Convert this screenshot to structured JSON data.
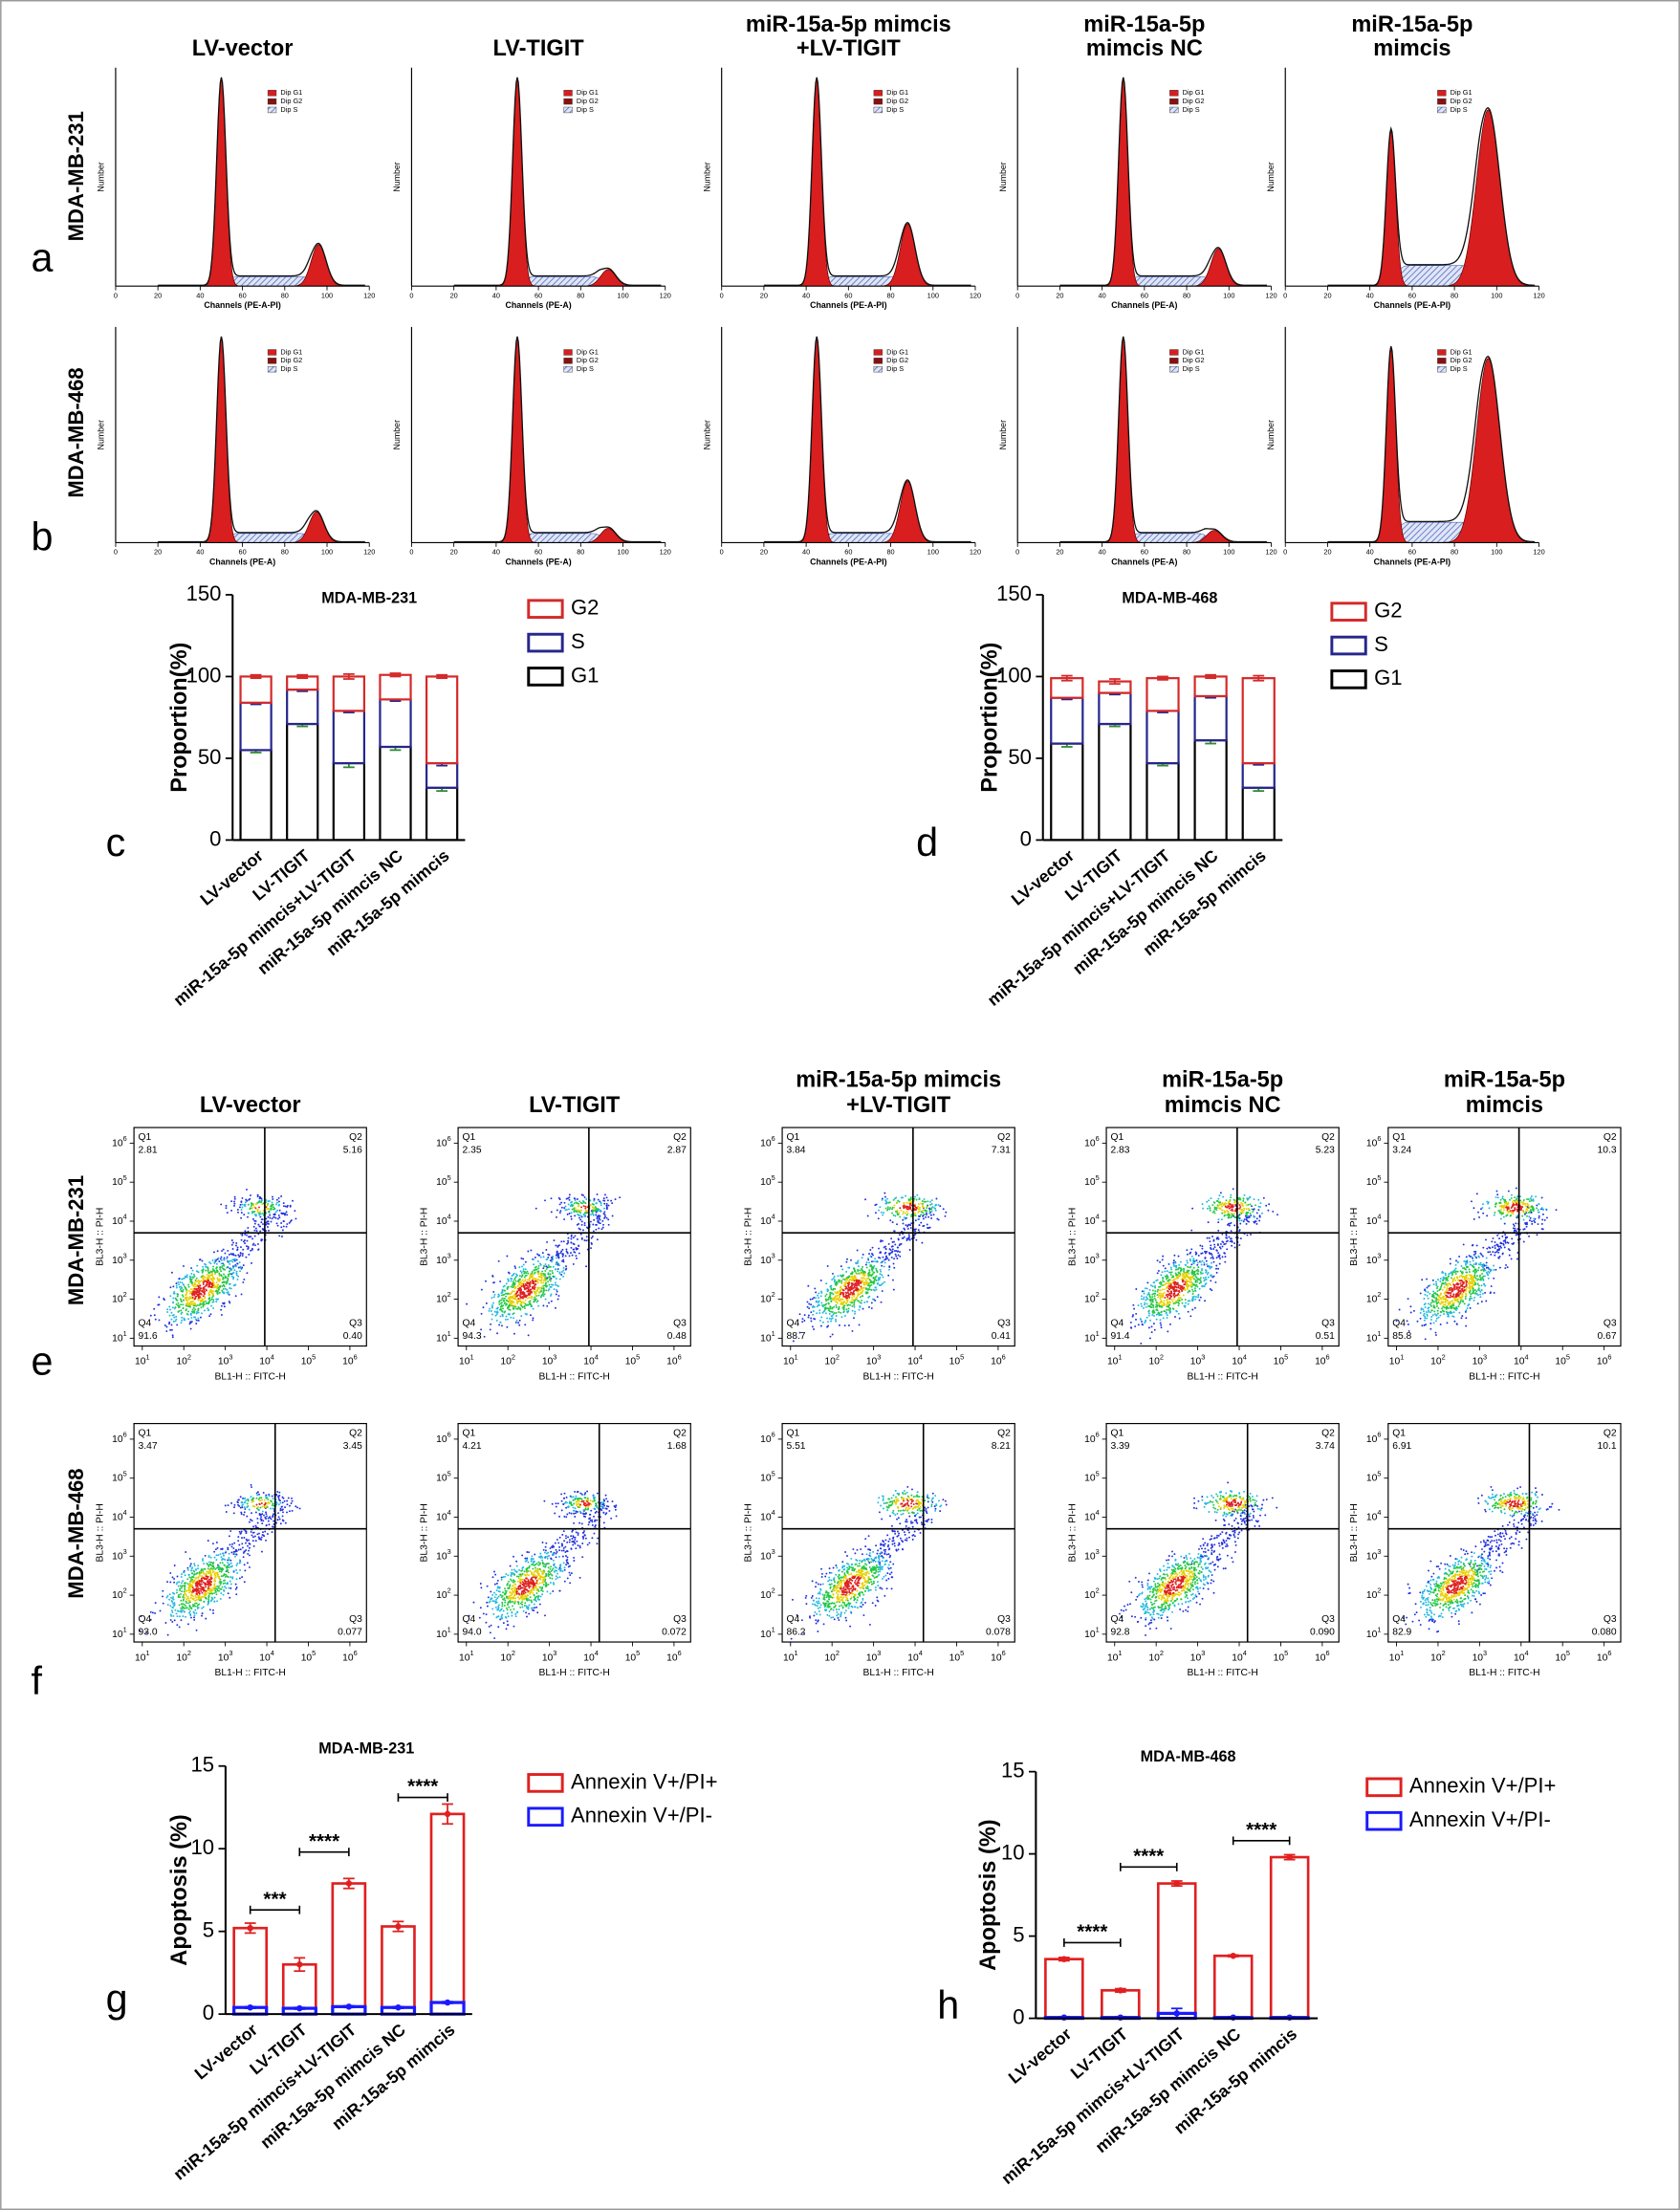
{
  "panel_letters": [
    "a",
    "b",
    "c",
    "d",
    "e",
    "f",
    "g",
    "h"
  ],
  "row_labels": [
    "MDA-MB-231",
    "MDA-MB-468"
  ],
  "cycle_titles": [
    [
      "LV-vector"
    ],
    [
      "LV-TIGIT"
    ],
    [
      "miR-15a-5p mimcis",
      "+LV-TIGIT"
    ],
    [
      "miR-15a-5p",
      "mimcis NC"
    ],
    [
      "miR-15a-5p",
      "mimcis"
    ]
  ],
  "apoptosis_titles": [
    [
      "LV-vector"
    ],
    [
      "LV-TIGIT"
    ],
    [
      "miR-15a-5p mimcis",
      "+LV-TIGIT"
    ],
    [
      "miR-15a-5p",
      "mimcis NC"
    ],
    [
      "miR-15a-5p",
      "mimcis"
    ]
  ],
  "histograms": {
    "legend": [
      "Dip G1",
      "Dip G2",
      "Dip S"
    ],
    "ylabel": "Number",
    "xlim": [
      0,
      120
    ],
    "xticks": [
      0,
      20,
      40,
      60,
      80,
      100,
      120
    ],
    "xlabels": [
      [
        "Channels (PE-A-PI)",
        "Channels (PE-A)",
        "Channels (PE-A-PI)",
        "Channels (PE-A)",
        "Channels (PE-A-PI)"
      ],
      [
        "Channels (PE-A)",
        "Channels (PE-A)",
        "Channels (PE-A-PI)",
        "Channels (PE-A)",
        "Channels (PE-A-PI)"
      ]
    ]
  },
  "flow": {
    "xlabel": "BL1-H :: FITC-H",
    "ylabel": "BL3-H :: PI-H",
    "tick_base": "10",
    "tick_exps": [
      "1",
      "2",
      "3",
      "4",
      "5",
      "6"
    ],
    "quadrant_names": [
      "Q1",
      "Q2",
      "Q3",
      "Q4"
    ],
    "values": [
      [
        [
          "2.81",
          "5.16",
          "0.40",
          "91.6"
        ],
        [
          "2.35",
          "2.87",
          "0.48",
          "94.3"
        ],
        [
          "3.84",
          "7.31",
          "0.41",
          "88.7"
        ],
        [
          "2.83",
          "5.23",
          "0.51",
          "91.4"
        ],
        [
          "3.24",
          "10.3",
          "0.67",
          "85.8"
        ]
      ],
      [
        [
          "3.47",
          "3.45",
          "0.077",
          "93.0"
        ],
        [
          "4.21",
          "1.68",
          "0.072",
          "94.0"
        ],
        [
          "5.51",
          "8.21",
          "0.078",
          "86.2"
        ],
        [
          "3.39",
          "3.74",
          "0.090",
          "92.8"
        ],
        [
          "6.91",
          "10.1",
          "0.080",
          "82.9"
        ]
      ]
    ]
  },
  "chart_data": [
    {
      "type": "stacked_bar",
      "title": "MDA-MB-231",
      "ylabel": "Proportion(%)",
      "categories": [
        "LV-vector",
        "LV-TIGIT",
        "miR-15a-5p mimcis+LV-TIGIT",
        "miR-15a-5p mimcis NC",
        "miR-15a-5p mimcis"
      ],
      "ylim": [
        0,
        150
      ],
      "yticks": [
        0,
        50,
        100,
        150
      ],
      "series": [
        {
          "name": "G1",
          "color": "#000000",
          "error_color": "#2e8b2e",
          "values": [
            55,
            71,
            47,
            57,
            32
          ],
          "errors": [
            1.5,
            1.5,
            2.5,
            2,
            2
          ]
        },
        {
          "name": "S",
          "color": "#26268c",
          "error_color": "#26268c",
          "values": [
            29,
            21,
            32,
            29,
            15
          ],
          "errors": [
            1,
            1,
            1,
            1,
            1.5
          ]
        },
        {
          "name": "G2",
          "color": "#d42a2a",
          "error_color": "#d42a2a",
          "values": [
            16,
            8,
            21,
            15,
            53
          ],
          "errors": [
            1,
            1,
            1.5,
            1,
            1
          ]
        }
      ]
    },
    {
      "type": "stacked_bar",
      "title": "MDA-MB-468",
      "ylabel": "Proportion(%)",
      "categories": [
        "LV-vector",
        "LV-TIGIT",
        "miR-15a-5p mimcis+LV-TIGIT",
        "miR-15a-5p mimcis NC",
        "miR-15a-5p mimcis"
      ],
      "ylim": [
        0,
        150
      ],
      "yticks": [
        0,
        50,
        100,
        150
      ],
      "series": [
        {
          "name": "G1",
          "color": "#000000",
          "error_color": "#2e8b2e",
          "values": [
            59,
            71,
            47,
            61,
            32
          ],
          "errors": [
            2,
            1.5,
            1.5,
            2,
            2
          ]
        },
        {
          "name": "S",
          "color": "#26268c",
          "error_color": "#26268c",
          "values": [
            28,
            19,
            32,
            27,
            15
          ],
          "errors": [
            1,
            1,
            1,
            1,
            1
          ]
        },
        {
          "name": "G2",
          "color": "#d42a2a",
          "error_color": "#d42a2a",
          "values": [
            12,
            7,
            20,
            12,
            52
          ],
          "errors": [
            1.5,
            1.5,
            1,
            1,
            1.5
          ]
        }
      ]
    },
    {
      "type": "overlay_bar",
      "title": "MDA-MB-231",
      "ylabel": "Apoptosis (%)",
      "categories": [
        "LV-vector",
        "LV-TIGIT",
        "miR-15a-5p mimcis+LV-TIGIT",
        "miR-15a-5p mimcis NC",
        "miR-15a-5p mimcis"
      ],
      "ylim": [
        0,
        15
      ],
      "yticks": [
        0,
        5,
        10,
        15
      ],
      "series": [
        {
          "name": "Annexin V+/PI+",
          "color": "#e02020",
          "values": [
            5.2,
            3.0,
            7.9,
            5.3,
            12.1
          ],
          "errors": [
            0.3,
            0.4,
            0.3,
            0.3,
            0.6
          ]
        },
        {
          "name": "Annexin V+/PI-",
          "color": "#1a1aff",
          "values": [
            0.4,
            0.35,
            0.45,
            0.4,
            0.7
          ],
          "errors": [
            0.05,
            0.05,
            0.05,
            0.05,
            0.05
          ]
        }
      ],
      "significance": [
        {
          "from": 0,
          "to": 1,
          "y": 6.3,
          "label": "***"
        },
        {
          "from": 1,
          "to": 2,
          "y": 9.8,
          "label": "****"
        },
        {
          "from": 3,
          "to": 4,
          "y": 13.1,
          "label": "****"
        }
      ]
    },
    {
      "type": "overlay_bar",
      "title": "MDA-MB-468",
      "ylabel": "Apoptosis (%)",
      "categories": [
        "LV-vector",
        "LV-TIGIT",
        "miR-15a-5p mimcis+LV-TIGIT",
        "miR-15a-5p mimcis NC",
        "miR-15a-5p mimcis"
      ],
      "ylim": [
        0,
        15
      ],
      "yticks": [
        0,
        5,
        10,
        15
      ],
      "series": [
        {
          "name": "Annexin V+/PI+",
          "color": "#e02020",
          "values": [
            3.6,
            1.7,
            8.2,
            3.8,
            9.8
          ],
          "errors": [
            0.1,
            0.1,
            0.15,
            0.05,
            0.15
          ]
        },
        {
          "name": "Annexin V+/PI-",
          "color": "#1a1aff",
          "values": [
            0.05,
            0.05,
            0.3,
            0.05,
            0.05
          ],
          "errors": [
            0.05,
            0.05,
            0.3,
            0.05,
            0.05
          ]
        }
      ],
      "significance": [
        {
          "from": 0,
          "to": 1,
          "y": 4.6,
          "label": "****"
        },
        {
          "from": 1,
          "to": 2,
          "y": 9.2,
          "label": "****"
        },
        {
          "from": 3,
          "to": 4,
          "y": 10.8,
          "label": "****"
        }
      ]
    }
  ]
}
